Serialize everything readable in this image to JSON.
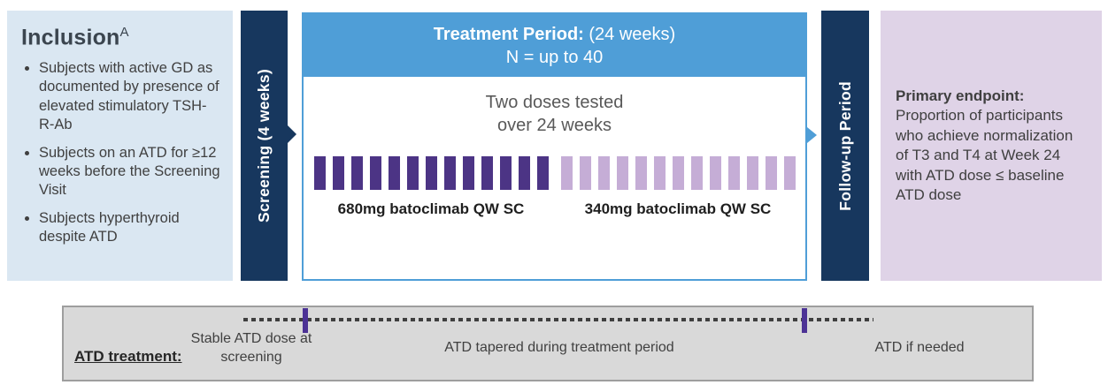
{
  "inclusion": {
    "title": "Inclusion",
    "title_superscript": "A",
    "bullets": [
      "Subjects with active GD as documented by presence of elevated stimulatory TSH-R-Ab",
      "Subjects on an ATD for ≥12 weeks before the Screening Visit",
      "Subjects hyperthyroid despite ATD"
    ]
  },
  "screening": {
    "label": "Screening (4 weeks)"
  },
  "treatment": {
    "header_bold": "Treatment Period:",
    "header_rest": " (24 weeks)",
    "header_line2": "N = up to 40",
    "subtitle_line1": "Two doses tested",
    "subtitle_line2": "over 24 weeks",
    "dose_groups": [
      {
        "label": "680mg batoclimab QW SC",
        "bar_count": 13,
        "color": "#4C3485"
      },
      {
        "label": "340mg batoclimab QW SC",
        "bar_count": 13,
        "color": "#C5ADD6"
      }
    ]
  },
  "followup": {
    "label": "Follow-up Period"
  },
  "endpoint": {
    "title": "Primary endpoint:",
    "text": "Proportion of participants who achieve normalization of T3 and T4 at Week 24 with ATD dose ≤ baseline ATD dose"
  },
  "atd": {
    "label": "ATD treatment:",
    "phases": [
      "Stable ATD dose at screening",
      "ATD tapered during treatment period",
      "ATD if needed"
    ]
  },
  "colors": {
    "navy": "#17375E",
    "header_blue": "#4F9ED7",
    "light_blue_panel": "#DAE7F2",
    "lavender_panel": "#DFD3E7",
    "dark_purple_bar": "#4C3485",
    "light_purple_bar": "#C5ADD6",
    "gray_panel": "#D9D9D9",
    "tick_purple": "#4C3295"
  }
}
